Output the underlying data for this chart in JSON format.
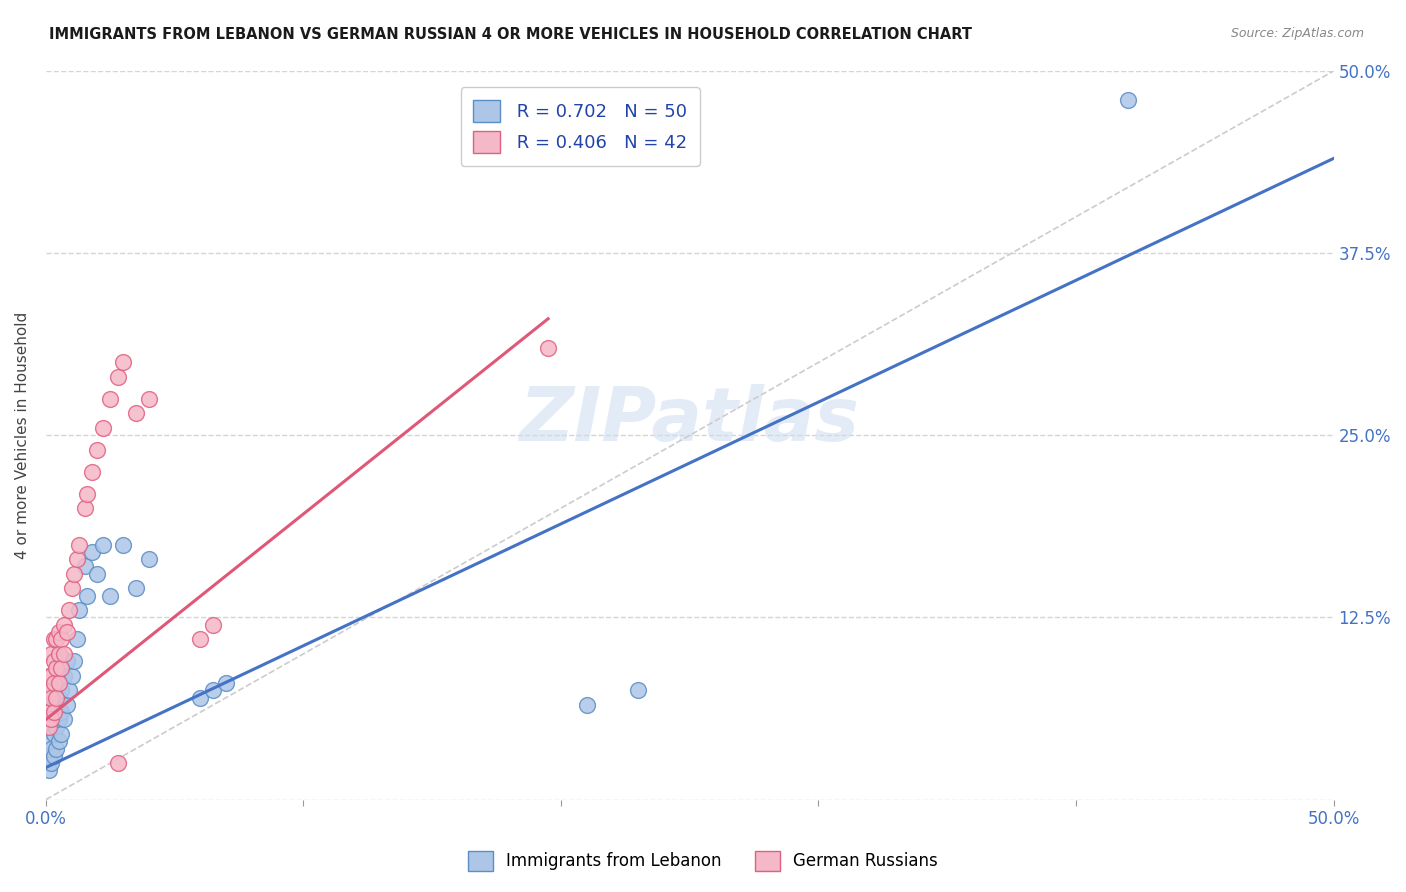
{
  "title": "IMMIGRANTS FROM LEBANON VS GERMAN RUSSIAN 4 OR MORE VEHICLES IN HOUSEHOLD CORRELATION CHART",
  "source": "Source: ZipAtlas.com",
  "ylabel": "4 or more Vehicles in Household",
  "xlim": [
    0,
    0.5
  ],
  "ylim": [
    0,
    0.5
  ],
  "xtick_positions": [
    0.0,
    0.1,
    0.2,
    0.3,
    0.4,
    0.5
  ],
  "xtick_labels": [
    "0.0%",
    "",
    "",
    "",
    "",
    "50.0%"
  ],
  "ytick_positions": [
    0.0,
    0.125,
    0.25,
    0.375,
    0.5
  ],
  "ytick_labels_right": [
    "",
    "12.5%",
    "25.0%",
    "37.5%",
    "50.0%"
  ],
  "legend_labels": [
    "Immigrants from Lebanon",
    "German Russians"
  ],
  "r_lebanon": 0.702,
  "n_lebanon": 50,
  "r_german": 0.406,
  "n_german": 42,
  "color_lebanon_fill": "#adc6e8",
  "color_german_fill": "#f5b8c8",
  "color_lebanon_edge": "#5b8ec4",
  "color_german_edge": "#e06080",
  "color_lebanon_line": "#4472c4",
  "color_german_line": "#e05878",
  "color_diag_line": "#cccccc",
  "watermark": "ZIPatlas",
  "blue_line_x": [
    0.0,
    0.5
  ],
  "blue_line_y": [
    0.022,
    0.44
  ],
  "pink_line_x": [
    0.0,
    0.195
  ],
  "pink_line_y": [
    0.055,
    0.33
  ],
  "blue_scatter_x": [
    0.001,
    0.001,
    0.001,
    0.001,
    0.002,
    0.002,
    0.002,
    0.002,
    0.002,
    0.003,
    0.003,
    0.003,
    0.003,
    0.003,
    0.004,
    0.004,
    0.004,
    0.004,
    0.005,
    0.005,
    0.005,
    0.005,
    0.005,
    0.006,
    0.006,
    0.006,
    0.007,
    0.007,
    0.008,
    0.008,
    0.009,
    0.01,
    0.011,
    0.012,
    0.013,
    0.015,
    0.016,
    0.018,
    0.02,
    0.022,
    0.025,
    0.03,
    0.035,
    0.04,
    0.06,
    0.065,
    0.07,
    0.21,
    0.23,
    0.42
  ],
  "blue_scatter_y": [
    0.02,
    0.03,
    0.04,
    0.06,
    0.025,
    0.035,
    0.05,
    0.065,
    0.075,
    0.03,
    0.045,
    0.055,
    0.07,
    0.08,
    0.035,
    0.05,
    0.065,
    0.09,
    0.04,
    0.055,
    0.07,
    0.085,
    0.1,
    0.045,
    0.06,
    0.075,
    0.055,
    0.085,
    0.065,
    0.095,
    0.075,
    0.085,
    0.095,
    0.11,
    0.13,
    0.16,
    0.14,
    0.17,
    0.155,
    0.175,
    0.14,
    0.175,
    0.145,
    0.165,
    0.07,
    0.075,
    0.08,
    0.065,
    0.075,
    0.48
  ],
  "pink_scatter_x": [
    0.001,
    0.001,
    0.001,
    0.001,
    0.002,
    0.002,
    0.002,
    0.002,
    0.003,
    0.003,
    0.003,
    0.003,
    0.004,
    0.004,
    0.004,
    0.005,
    0.005,
    0.005,
    0.006,
    0.006,
    0.007,
    0.007,
    0.008,
    0.009,
    0.01,
    0.011,
    0.012,
    0.013,
    0.015,
    0.016,
    0.018,
    0.02,
    0.022,
    0.025,
    0.028,
    0.03,
    0.035,
    0.04,
    0.06,
    0.065,
    0.195,
    0.028
  ],
  "pink_scatter_y": [
    0.05,
    0.06,
    0.075,
    0.085,
    0.055,
    0.07,
    0.085,
    0.1,
    0.06,
    0.08,
    0.095,
    0.11,
    0.07,
    0.09,
    0.11,
    0.08,
    0.1,
    0.115,
    0.09,
    0.11,
    0.1,
    0.12,
    0.115,
    0.13,
    0.145,
    0.155,
    0.165,
    0.175,
    0.2,
    0.21,
    0.225,
    0.24,
    0.255,
    0.275,
    0.29,
    0.3,
    0.265,
    0.275,
    0.11,
    0.12,
    0.31,
    0.025
  ]
}
